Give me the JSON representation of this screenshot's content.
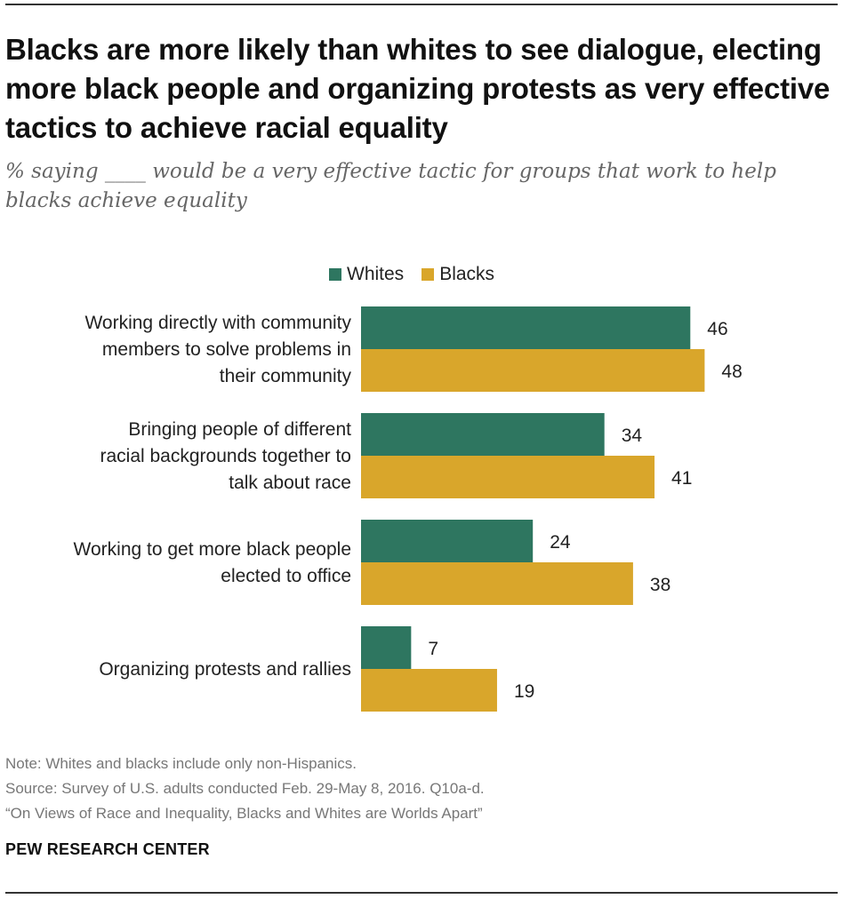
{
  "title": "Blacks are more likely than whites to see dialogue, electing more black people and organizing protests as very effective tactics to achieve racial equality",
  "subtitle": "% saying ____ would be a very effective tactic for groups that work to help blacks achieve equality",
  "legend": {
    "whites": "Whites",
    "blacks": "Blacks"
  },
  "colors": {
    "whites": "#2e7660",
    "blacks": "#d9a62b"
  },
  "chart_data": {
    "type": "bar",
    "orientation": "horizontal",
    "categories": [
      [
        "Working directly with community",
        "members to solve problems in",
        "their community"
      ],
      [
        "Bringing people of different",
        "racial backgrounds together to",
        "talk about race"
      ],
      [
        "Working to get more black people",
        "elected to office"
      ],
      [
        "Organizing protests and rallies"
      ]
    ],
    "series": [
      {
        "name": "Whites",
        "values": [
          46,
          34,
          24,
          7
        ]
      },
      {
        "name": "Blacks",
        "values": [
          48,
          41,
          38,
          19
        ]
      }
    ],
    "xlim": [
      0,
      100
    ],
    "title": "Blacks are more likely than whites to see dialogue, electing more black people and organizing protests as very effective tactics to achieve racial equality",
    "xlabel": "",
    "ylabel": ""
  },
  "footer": {
    "note": "Note: Whites and blacks include only non-Hispanics.",
    "source": "Source: Survey of U.S. adults conducted Feb. 29-May 8, 2016. Q10a-d.",
    "report": "“On Views of Race and Inequality, Blacks and Whites are Worlds Apart”",
    "brand": "PEW RESEARCH CENTER"
  }
}
